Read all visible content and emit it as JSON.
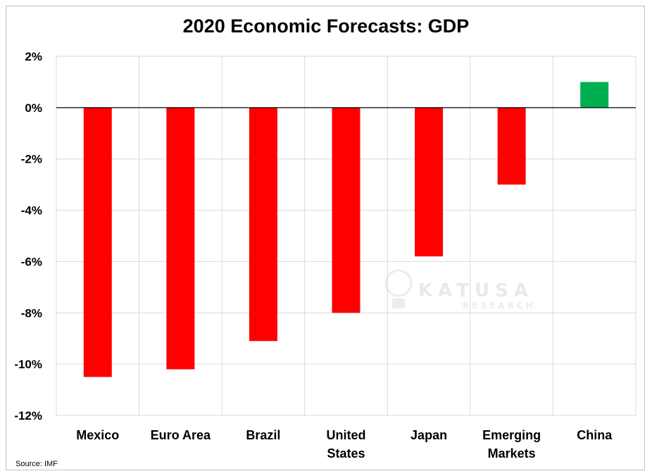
{
  "chart_data": {
    "type": "bar",
    "title": "2020 Economic Forecasts: GDP",
    "categories": [
      "Mexico",
      "Euro Area",
      "Brazil",
      "United States",
      "Japan",
      "Emerging Markets",
      "China"
    ],
    "category_lines": [
      [
        "Mexico"
      ],
      [
        "Euro Area"
      ],
      [
        "Brazil"
      ],
      [
        "United",
        "States"
      ],
      [
        "Japan"
      ],
      [
        "Emerging",
        "Markets"
      ],
      [
        "China"
      ]
    ],
    "values": [
      -10.5,
      -10.2,
      -9.1,
      -8.0,
      -5.8,
      -3.0,
      1.0
    ],
    "ylim": [
      -12,
      2
    ],
    "yticks": [
      2,
      0,
      -2,
      -4,
      -6,
      -8,
      -10,
      -12
    ],
    "ytick_labels": [
      "2%",
      "0%",
      "-2%",
      "-4%",
      "-6%",
      "-8%",
      "-10%",
      "-12%"
    ],
    "xlabel": "",
    "ylabel": "",
    "grid": true,
    "colors": {
      "negative": "#ff0000",
      "positive": "#00b050",
      "grid": "#d9d9d9",
      "zero_line": "#000000"
    },
    "source": "Source: IMF",
    "watermark": {
      "brand": "KATUSA",
      "sub": "RESEARCH"
    }
  }
}
